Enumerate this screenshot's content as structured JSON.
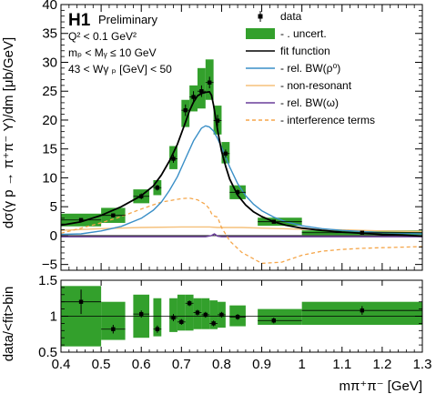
{
  "annotations": {
    "experiment": "H1",
    "status": "Preliminary",
    "cut_q2": "Q² < 0.1 GeV²",
    "cut_my": "mₚ < Mᵧ ≤ 10 GeV",
    "cut_w": "43 < Wγ ₚ [GeV] < 50"
  },
  "chart_data": [
    {
      "type": "scatter",
      "xlabel": "mπ⁺π⁻ [GeV]",
      "ylabel": "dσ(γ p → π⁺π⁻ Y)/dm [μb/GeV]",
      "xlim": [
        0.4,
        1.3
      ],
      "ylim": [
        -6,
        40
      ],
      "x_ticks": [
        "0.4",
        "0.5",
        "0.6",
        "0.7",
        "0.8",
        "0.9",
        "1",
        "1.1",
        "1.2",
        "1.3"
      ],
      "y_ticks": [
        "−5",
        "0",
        "5",
        "10",
        "15",
        "20",
        "25",
        "30",
        "35",
        "40"
      ],
      "legend_position": "top-right",
      "legend": [
        {
          "label": "data",
          "style": "point",
          "color": "#000000"
        },
        {
          "label": "- . uncert.",
          "style": "box",
          "color": "#33a02c"
        },
        {
          "label": "fit function",
          "style": "line",
          "color": "#000000"
        },
        {
          "label": "- rel. BW(ρ⁰)",
          "style": "line",
          "color": "#3a8fc7"
        },
        {
          "label": "- non-resonant",
          "style": "line",
          "color": "#f5c07a"
        },
        {
          "label": "- rel. BW(ω)",
          "style": "line",
          "color": "#6a3d9a"
        },
        {
          "label": "- interference terms",
          "style": "dash",
          "color": "#f5a64a"
        }
      ],
      "data_points": [
        {
          "x": 0.45,
          "xlo": 0.4,
          "xhi": 0.5,
          "y": 2.7,
          "err": 0.3,
          "band": [
            1.6,
            3.8
          ]
        },
        {
          "x": 0.53,
          "xlo": 0.5,
          "xhi": 0.56,
          "y": 3.5,
          "err": 0.3,
          "band": [
            2.2,
            4.8
          ]
        },
        {
          "x": 0.6,
          "xlo": 0.58,
          "xhi": 0.62,
          "y": 6.8,
          "err": 0.5,
          "band": [
            5.6,
            8.0
          ]
        },
        {
          "x": 0.64,
          "xlo": 0.63,
          "xhi": 0.65,
          "y": 8.3,
          "err": 0.5,
          "band": [
            7.0,
            9.6
          ]
        },
        {
          "x": 0.68,
          "xlo": 0.67,
          "xhi": 0.69,
          "y": 13.3,
          "err": 0.7,
          "band": [
            11.5,
            15.5
          ]
        },
        {
          "x": 0.71,
          "xlo": 0.7,
          "xhi": 0.72,
          "y": 21.7,
          "err": 1.0,
          "band": [
            18.8,
            23.5
          ]
        },
        {
          "x": 0.73,
          "xlo": 0.72,
          "xhi": 0.74,
          "y": 24.0,
          "err": 1.0,
          "band": [
            21.5,
            26.0
          ]
        },
        {
          "x": 0.75,
          "xlo": 0.74,
          "xhi": 0.76,
          "y": 25.0,
          "err": 1.0,
          "band": [
            22.0,
            29.0
          ]
        },
        {
          "x": 0.77,
          "xlo": 0.76,
          "xhi": 0.78,
          "y": 26.5,
          "err": 1.0,
          "band": [
            23.5,
            30.5
          ]
        },
        {
          "x": 0.79,
          "xlo": 0.78,
          "xhi": 0.8,
          "y": 19.9,
          "err": 1.0,
          "band": [
            17.5,
            22.5
          ]
        },
        {
          "x": 0.81,
          "xlo": 0.8,
          "xhi": 0.82,
          "y": 14.2,
          "err": 0.7,
          "band": [
            12.5,
            16.2
          ]
        },
        {
          "x": 0.84,
          "xlo": 0.82,
          "xhi": 0.86,
          "y": 7.5,
          "err": 0.5,
          "band": [
            6.3,
            8.7
          ]
        },
        {
          "x": 0.93,
          "xlo": 0.89,
          "xhi": 1.0,
          "y": 2.4,
          "err": 0.2,
          "band": [
            1.7,
            3.1
          ]
        },
        {
          "x": 1.15,
          "xlo": 1.0,
          "xhi": 1.3,
          "y": 0.5,
          "err": 0.2,
          "band": [
            0.1,
            0.9
          ]
        }
      ],
      "fit_function": {
        "x": [
          0.4,
          0.45,
          0.5,
          0.55,
          0.6,
          0.63,
          0.65,
          0.67,
          0.69,
          0.71,
          0.72,
          0.73,
          0.74,
          0.75,
          0.76,
          0.77,
          0.775,
          0.78,
          0.79,
          0.8,
          0.81,
          0.82,
          0.84,
          0.86,
          0.88,
          0.9,
          0.93,
          0.96,
          1.0,
          1.05,
          1.1,
          1.15,
          1.2,
          1.25,
          1.3
        ],
        "y": [
          1.8,
          2.4,
          3.5,
          5.0,
          6.9,
          8.6,
          10.5,
          12.9,
          15.8,
          19.6,
          21.6,
          23.1,
          24.2,
          24.6,
          24.8,
          24.9,
          24.3,
          22.6,
          18.3,
          14.6,
          12.0,
          9.8,
          7.0,
          5.3,
          4.1,
          3.3,
          2.4,
          1.8,
          1.3,
          0.9,
          0.6,
          0.4,
          0.2,
          0.1,
          -0.1
        ]
      },
      "bw_rho": {
        "x": [
          0.4,
          0.45,
          0.5,
          0.55,
          0.6,
          0.63,
          0.65,
          0.67,
          0.69,
          0.71,
          0.73,
          0.75,
          0.76,
          0.77,
          0.78,
          0.79,
          0.8,
          0.81,
          0.82,
          0.84,
          0.86,
          0.88,
          0.9,
          0.93,
          0.96,
          1.0,
          1.05,
          1.1,
          1.2,
          1.3
        ],
        "y": [
          0.2,
          0.3,
          0.8,
          1.6,
          3.0,
          4.4,
          5.8,
          7.8,
          10.2,
          13.3,
          16.4,
          18.6,
          19.0,
          18.8,
          18.1,
          16.8,
          15.3,
          13.6,
          11.9,
          9.0,
          6.9,
          5.4,
          4.3,
          3.2,
          2.4,
          1.7,
          1.2,
          0.9,
          0.5,
          0.3
        ]
      },
      "non_resonant": {
        "x": [
          0.4,
          0.5,
          0.6,
          0.7,
          0.75,
          0.77,
          0.79,
          0.85,
          0.9,
          1.0,
          1.1,
          1.2,
          1.3
        ],
        "y": [
          0.9,
          1.2,
          1.4,
          1.5,
          1.5,
          1.5,
          1.4,
          1.4,
          1.3,
          1.1,
          1.0,
          0.8,
          0.7
        ]
      },
      "bw_omega": {
        "x": [
          0.4,
          0.76,
          0.775,
          0.782,
          0.79,
          0.8,
          1.3
        ],
        "y": [
          -0.2,
          -0.2,
          0.0,
          0.3,
          -0.1,
          -0.2,
          -0.2
        ]
      },
      "interference": {
        "x": [
          0.4,
          0.45,
          0.5,
          0.55,
          0.6,
          0.65,
          0.7,
          0.72,
          0.74,
          0.76,
          0.77,
          0.775,
          0.78,
          0.79,
          0.8,
          0.82,
          0.85,
          0.9,
          0.95,
          1.0,
          1.05,
          1.1,
          1.15,
          1.2,
          1.25,
          1.3
        ],
        "y": [
          0.4,
          1.3,
          2.2,
          3.3,
          4.6,
          5.8,
          6.4,
          6.5,
          6.2,
          5.4,
          4.6,
          3.8,
          3.4,
          3.2,
          1.4,
          -0.9,
          -2.9,
          -4.8,
          -4.6,
          -3.4,
          -2.7,
          -2.4,
          -2.2,
          -2.1,
          -2.0,
          -1.9
        ]
      }
    },
    {
      "type": "scatter",
      "xlabel": "mπ⁺π⁻ [GeV]",
      "ylabel": "data/<fit>bin",
      "xlim": [
        0.4,
        1.3
      ],
      "ylim": [
        0.5,
        1.5
      ],
      "y_ticks": [
        "0.5",
        "1",
        "1.5"
      ],
      "reference_line": 1.0,
      "ratio_points": [
        {
          "x": 0.45,
          "xlo": 0.4,
          "xhi": 0.5,
          "y": 1.2,
          "err": 0.17,
          "band": [
            0.58,
            1.42
          ]
        },
        {
          "x": 0.53,
          "xlo": 0.5,
          "xhi": 0.56,
          "y": 0.82,
          "err": 0.06,
          "band": [
            0.67,
            1.2
          ]
        },
        {
          "x": 0.6,
          "xlo": 0.58,
          "xhi": 0.62,
          "y": 1.03,
          "err": 0.05,
          "band": [
            0.7,
            1.3
          ]
        },
        {
          "x": 0.64,
          "xlo": 0.63,
          "xhi": 0.65,
          "y": 0.82,
          "err": 0.05,
          "band": [
            0.72,
            1.25
          ]
        },
        {
          "x": 0.68,
          "xlo": 0.67,
          "xhi": 0.69,
          "y": 0.98,
          "err": 0.05,
          "band": [
            0.78,
            1.25
          ]
        },
        {
          "x": 0.7,
          "xlo": 0.69,
          "xhi": 0.71,
          "y": 0.92,
          "err": 0.04,
          "band": [
            0.8,
            1.3
          ]
        },
        {
          "x": 0.72,
          "xlo": 0.71,
          "xhi": 0.73,
          "y": 1.18,
          "err": 0.04,
          "band": [
            0.8,
            1.3
          ]
        },
        {
          "x": 0.74,
          "xlo": 0.73,
          "xhi": 0.75,
          "y": 1.05,
          "err": 0.04,
          "band": [
            0.82,
            1.25
          ]
        },
        {
          "x": 0.76,
          "xlo": 0.75,
          "xhi": 0.77,
          "y": 1.02,
          "err": 0.04,
          "band": [
            0.82,
            1.25
          ]
        },
        {
          "x": 0.78,
          "xlo": 0.77,
          "xhi": 0.79,
          "y": 0.9,
          "err": 0.04,
          "band": [
            0.82,
            1.22
          ]
        },
        {
          "x": 0.8,
          "xlo": 0.79,
          "xhi": 0.81,
          "y": 1.02,
          "err": 0.04,
          "band": [
            0.84,
            1.2
          ]
        },
        {
          "x": 0.84,
          "xlo": 0.82,
          "xhi": 0.86,
          "y": 0.99,
          "err": 0.04,
          "band": [
            0.86,
            1.15
          ]
        },
        {
          "x": 0.93,
          "xlo": 0.89,
          "xhi": 1.0,
          "y": 0.94,
          "err": 0.04,
          "band": [
            0.88,
            1.1
          ]
        },
        {
          "x": 1.15,
          "xlo": 1.0,
          "xhi": 1.3,
          "y": 1.08,
          "err": 0.06,
          "band": [
            0.88,
            1.2
          ]
        }
      ]
    }
  ]
}
